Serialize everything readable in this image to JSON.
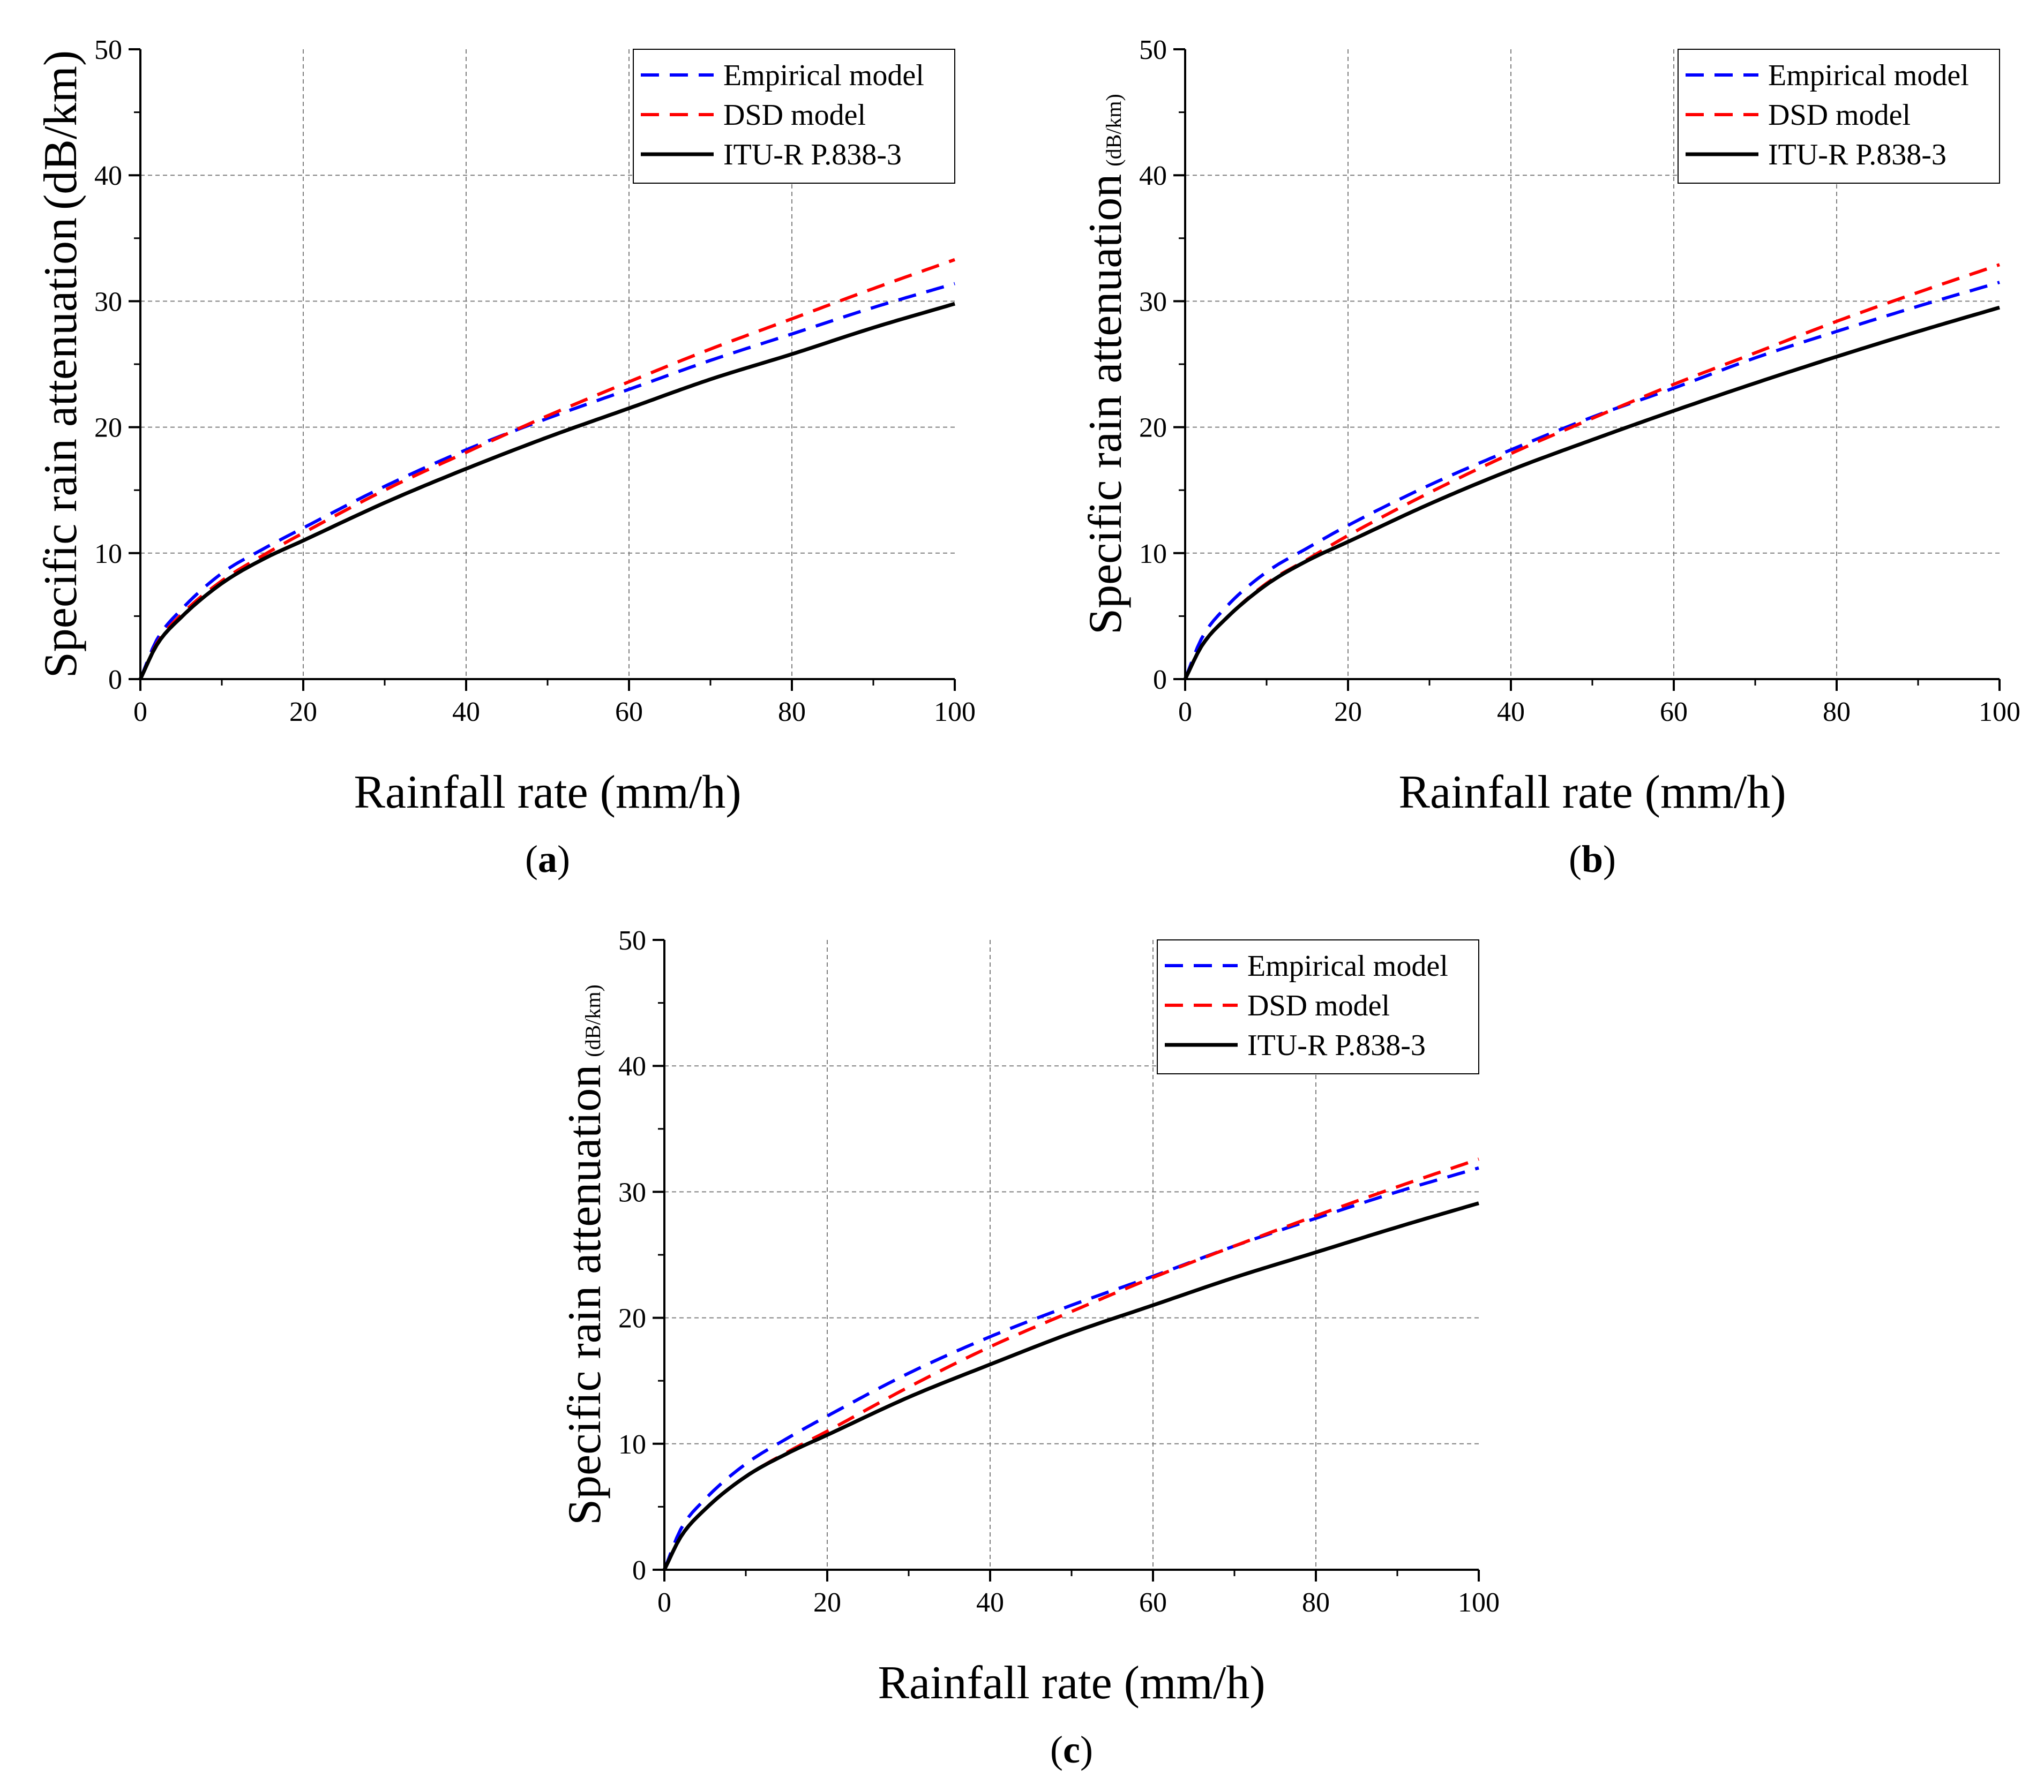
{
  "figure": {
    "colors": {
      "empirical": "#0000ff",
      "dsd": "#ff0000",
      "itu": "#000000",
      "grid": "#808080",
      "axis": "#000000"
    }
  },
  "chart_data": [
    {
      "id": "a",
      "type": "line",
      "panel_label": "a",
      "xlabel": "Rainfall rate (mm/h)",
      "ylabel": "Specific rain attenuation (dB/km)",
      "ylabel_main": "Specific rain attenuation",
      "ylabel_unit": "(dB/km)",
      "xlim": [
        0,
        100
      ],
      "ylim": [
        0,
        50
      ],
      "xticks": [
        0,
        20,
        40,
        60,
        80,
        100
      ],
      "yticks": [
        0,
        10,
        20,
        30,
        40,
        50
      ],
      "grid": true,
      "legend_position": "top-right",
      "series": [
        {
          "name": "Empirical model",
          "style": "dashed",
          "color": "#0000ff",
          "x": [
            0,
            2,
            5,
            10,
            15,
            20,
            30,
            40,
            50,
            60,
            70,
            80,
            90,
            100
          ],
          "y": [
            0,
            3.1,
            5.5,
            8.4,
            10.3,
            12.0,
            15.3,
            18.2,
            20.7,
            23.0,
            25.3,
            27.4,
            29.5,
            31.4
          ]
        },
        {
          "name": "DSD model",
          "style": "dashed",
          "color": "#ff0000",
          "x": [
            0,
            2,
            5,
            10,
            15,
            20,
            30,
            40,
            50,
            60,
            70,
            80,
            90,
            100
          ],
          "y": [
            0,
            2.8,
            5.1,
            7.8,
            9.8,
            11.6,
            15.0,
            18.0,
            20.9,
            23.6,
            26.2,
            28.6,
            31.0,
            33.3
          ]
        },
        {
          "name": "ITU-R P.838-3",
          "style": "solid",
          "color": "#000000",
          "x": [
            0,
            2,
            5,
            10,
            15,
            20,
            30,
            40,
            50,
            60,
            70,
            80,
            90,
            100
          ],
          "y": [
            0,
            2.7,
            4.9,
            7.6,
            9.5,
            11.0,
            14.0,
            16.7,
            19.2,
            21.5,
            23.8,
            25.8,
            27.9,
            29.8
          ]
        }
      ]
    },
    {
      "id": "b",
      "type": "line",
      "panel_label": "b",
      "xlabel": "Rainfall rate (mm/h)",
      "ylabel": "Specific rain attenuation (dB/km)",
      "ylabel_main": "Specific rain attenuation",
      "ylabel_unit": "(dB/km)",
      "xlim": [
        0,
        100
      ],
      "ylim": [
        0,
        50
      ],
      "xticks": [
        0,
        20,
        40,
        60,
        80,
        100
      ],
      "yticks": [
        0,
        10,
        20,
        30,
        40,
        50
      ],
      "grid": true,
      "legend_position": "top-right",
      "series": [
        {
          "name": "Empirical model",
          "style": "dashed",
          "color": "#0000ff",
          "x": [
            0,
            2,
            5,
            10,
            15,
            20,
            30,
            40,
            50,
            60,
            70,
            80,
            90,
            100
          ],
          "y": [
            0,
            3.2,
            5.7,
            8.5,
            10.4,
            12.2,
            15.4,
            18.2,
            20.8,
            23.1,
            25.5,
            27.6,
            29.6,
            31.5
          ]
        },
        {
          "name": "DSD model",
          "style": "dashed",
          "color": "#ff0000",
          "x": [
            0,
            2,
            5,
            10,
            15,
            20,
            30,
            40,
            50,
            60,
            70,
            80,
            90,
            100
          ],
          "y": [
            0,
            2.6,
            4.8,
            7.6,
            9.5,
            11.4,
            14.8,
            17.9,
            20.7,
            23.4,
            25.9,
            28.4,
            30.7,
            32.9
          ]
        },
        {
          "name": "ITU-R P.838-3",
          "style": "solid",
          "color": "#000000",
          "x": [
            0,
            2,
            5,
            10,
            15,
            20,
            30,
            40,
            50,
            60,
            70,
            80,
            90,
            100
          ],
          "y": [
            0,
            2.6,
            4.8,
            7.5,
            9.4,
            10.9,
            13.9,
            16.6,
            19.0,
            21.3,
            23.5,
            25.6,
            27.6,
            29.5
          ]
        }
      ]
    },
    {
      "id": "c",
      "type": "line",
      "panel_label": "c",
      "xlabel": "Rainfall rate (mm/h)",
      "ylabel": "Specific rain attenuation (dB/km)",
      "ylabel_main": "Specific rain attenuation",
      "ylabel_unit": "(dB/km)",
      "xlim": [
        0,
        100
      ],
      "ylim": [
        0,
        50
      ],
      "xticks": [
        0,
        20,
        40,
        60,
        80,
        100
      ],
      "yticks": [
        0,
        10,
        20,
        30,
        40,
        50
      ],
      "grid": true,
      "legend_position": "top-right",
      "series": [
        {
          "name": "Empirical model",
          "style": "dashed",
          "color": "#0000ff",
          "x": [
            0,
            2,
            5,
            10,
            15,
            20,
            30,
            40,
            50,
            60,
            70,
            80,
            90,
            100
          ],
          "y": [
            0,
            3.2,
            5.6,
            8.4,
            10.4,
            12.2,
            15.6,
            18.5,
            21.0,
            23.3,
            25.7,
            27.9,
            30.0,
            31.9
          ]
        },
        {
          "name": "DSD model",
          "style": "dashed",
          "color": "#ff0000",
          "x": [
            0,
            2,
            5,
            10,
            15,
            20,
            30,
            40,
            50,
            60,
            70,
            80,
            90,
            100
          ],
          "y": [
            0,
            2.6,
            4.8,
            7.4,
            9.3,
            11.0,
            14.5,
            17.7,
            20.5,
            23.2,
            25.7,
            28.1,
            30.4,
            32.6
          ]
        },
        {
          "name": "ITU-R P.838-3",
          "style": "solid",
          "color": "#000000",
          "x": [
            0,
            2,
            5,
            10,
            15,
            20,
            30,
            40,
            50,
            60,
            70,
            80,
            90,
            100
          ],
          "y": [
            0,
            2.6,
            4.8,
            7.4,
            9.2,
            10.7,
            13.7,
            16.3,
            18.8,
            21.0,
            23.2,
            25.2,
            27.2,
            29.1
          ]
        }
      ]
    }
  ]
}
